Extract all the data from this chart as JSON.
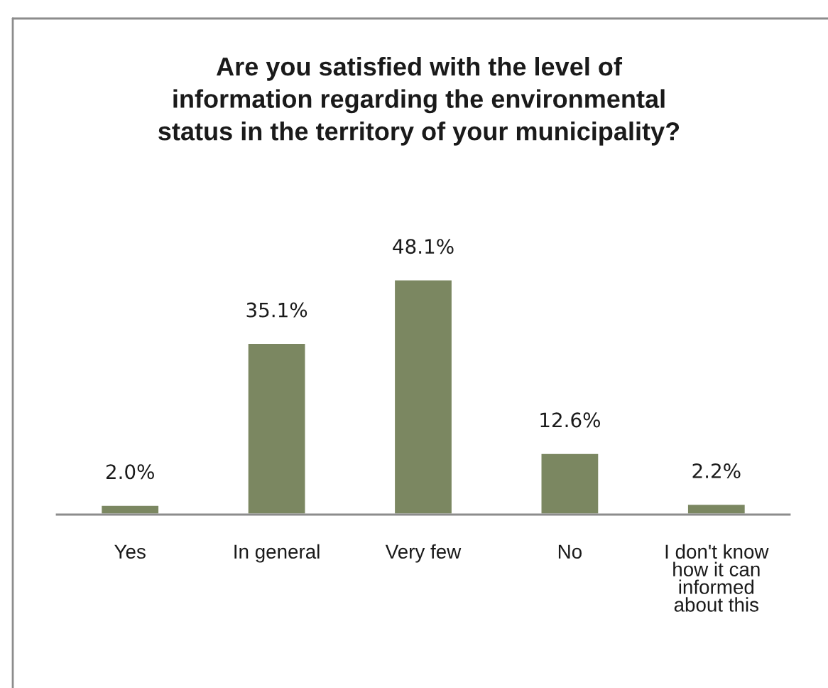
{
  "chart_data": {
    "type": "bar",
    "title": "Are you satisfied with the level of\ninformation regarding the environmental\nstatus in the territory of your municipality?",
    "categories": [
      "Yes",
      "In general",
      "Very few",
      "No",
      "I don't know\nhow it can\ninformed\nabout this"
    ],
    "values": [
      2.0,
      35.1,
      48.1,
      12.6,
      2.2
    ],
    "value_labels": [
      "2.0%",
      "35.1%",
      "48.1%",
      "12.6%",
      "2.2%"
    ],
    "color": "#7b8761"
  }
}
